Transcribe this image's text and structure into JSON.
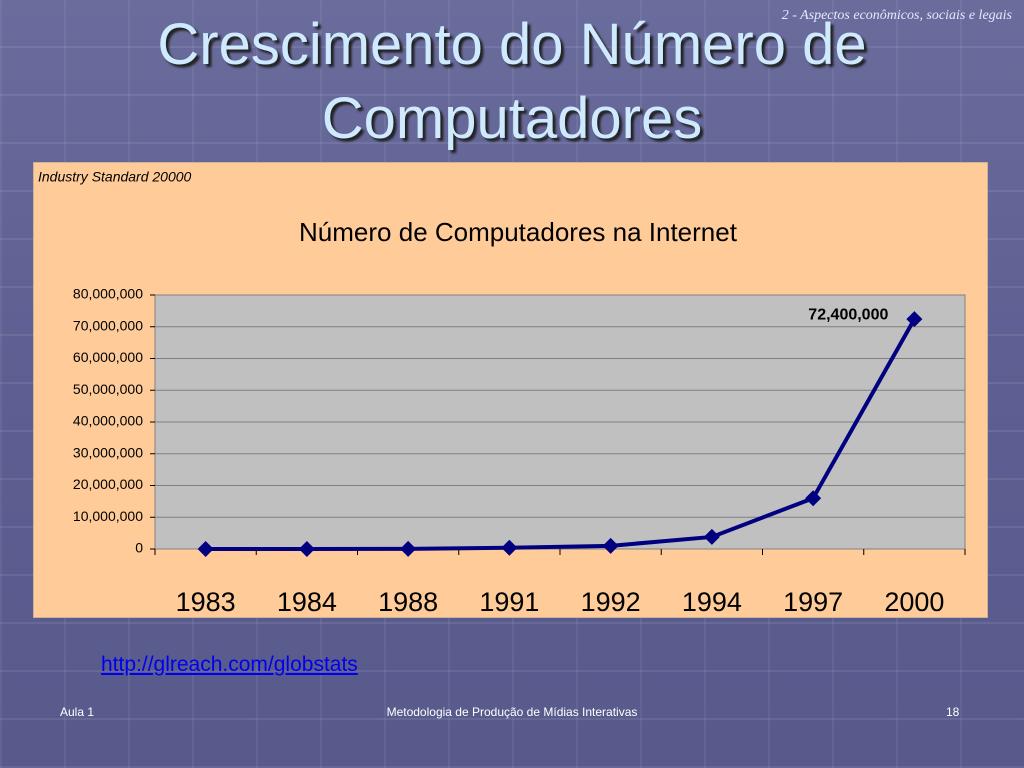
{
  "header": {
    "section": "2 - Aspectos econômicos, sociais e legais",
    "title": "Crescimento do Número de Computadores"
  },
  "chart_data": {
    "type": "line",
    "source": "Industry Standard 20000",
    "title": "Número de Computadores na Internet",
    "categories": [
      "1983",
      "1984",
      "1988",
      "1991",
      "1992",
      "1994",
      "1997",
      "2000"
    ],
    "values": [
      562,
      1024,
      56000,
      376000,
      1000000,
      3800000,
      16000000,
      72400000
    ],
    "value_labels": [
      null,
      null,
      null,
      null,
      null,
      null,
      null,
      "72,400,000"
    ],
    "color": "#000080",
    "ylim": [
      0,
      80000000
    ],
    "yticks": [
      0,
      {
        "value": 10000000,
        "label": "10,000,000"
      },
      {
        "value": 20000000,
        "label": "20,000,000"
      },
      {
        "value": 30000000,
        "label": "30,000,000"
      },
      {
        "value": 40000000,
        "label": "40,000,000"
      },
      {
        "value": 50000000,
        "label": "50,000,000"
      },
      {
        "value": 60000000,
        "label": "60,000,000"
      },
      {
        "value": 70000000,
        "label": "70,000,000"
      },
      {
        "value": 80000000,
        "label": "80,000,000"
      }
    ],
    "grid": true
  },
  "link": "http://glreach.com/globstats",
  "footer": {
    "left": "Aula 1",
    "center": "Metodologia de Produção de Mídias Interativas",
    "right": "18"
  }
}
